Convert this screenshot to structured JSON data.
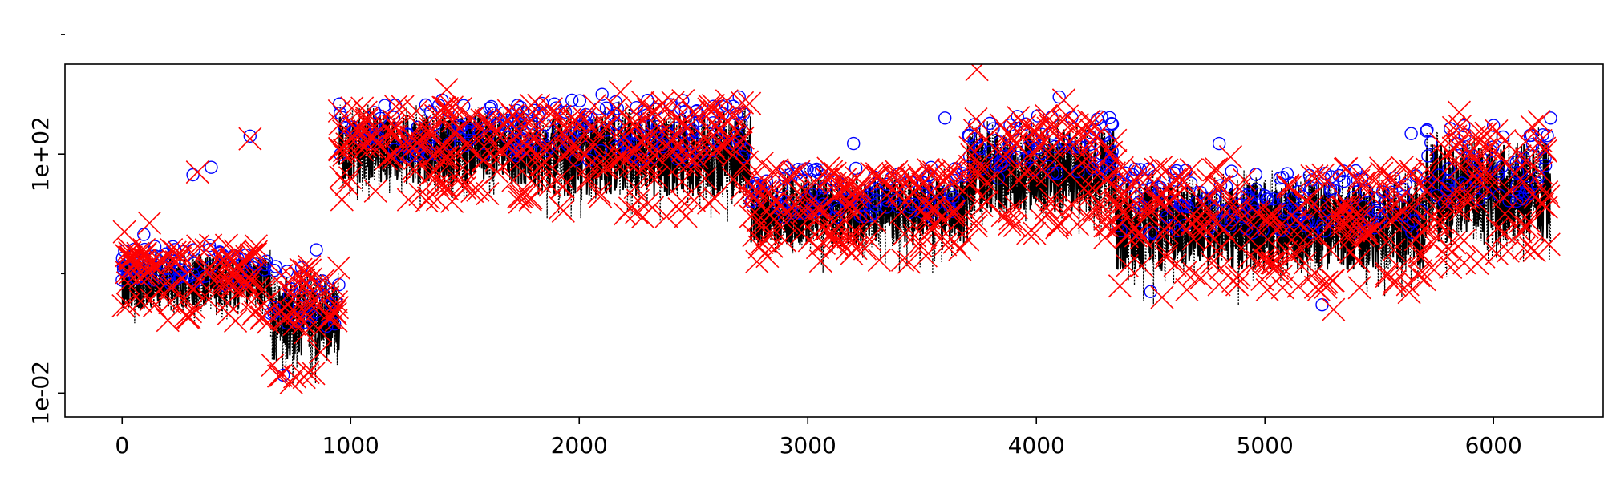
{
  "chart_data": {
    "type": "line",
    "title": "",
    "xlabel": "",
    "ylabel": "",
    "xlim": [
      -250,
      6480
    ],
    "ylim": [
      0.004,
      3200
    ],
    "y_scale": "log",
    "grid": false,
    "legend": "none",
    "x_ticks": [
      {
        "value": 0,
        "label": "0"
      },
      {
        "value": 1000,
        "label": "1000"
      },
      {
        "value": 2000,
        "label": "2000"
      },
      {
        "value": 3000,
        "label": "3000"
      },
      {
        "value": 4000,
        "label": "4000"
      },
      {
        "value": 5000,
        "label": "5000"
      },
      {
        "value": 6000,
        "label": "6000"
      }
    ],
    "y_ticks_major": [
      {
        "value": 0.01,
        "label": "1e-02"
      },
      {
        "value": 100,
        "label": "1e+02"
      }
    ],
    "y_ticks_minor": [
      1,
      10000
    ],
    "colors": {
      "line": "#000000",
      "circle_markers": "#0000ff",
      "x_markers": "#ff0000"
    },
    "series": [
      {
        "style": "black dotted line",
        "segments": [
          {
            "x": [
              0,
              650
            ],
            "y_low": 0.09,
            "y_high": 3
          },
          {
            "x": [
              650,
              950
            ],
            "y_low": 0.007,
            "y_high": 1.4
          },
          {
            "x": [
              950,
              1800
            ],
            "y_low": 8,
            "y_high": 700
          },
          {
            "x": [
              1800,
              2750
            ],
            "y_low": 4,
            "y_high": 800
          },
          {
            "x": [
              2750,
              3700
            ],
            "y_low": 0.8,
            "y_high": 60
          },
          {
            "x": [
              3700,
              4350
            ],
            "y_low": 2,
            "y_high": 450
          },
          {
            "x": [
              4350,
              5700
            ],
            "y_low": 0.2,
            "y_high": 60
          },
          {
            "x": [
              5700,
              6250
            ],
            "y_low": 0.4,
            "y_high": 300
          }
        ]
      },
      {
        "style": "blue circle markers",
        "points": [
          [
            15,
            1.3
          ],
          [
            95,
            4.5
          ],
          [
            310,
            45
          ],
          [
            390,
            60
          ],
          [
            560,
            200
          ],
          [
            705,
            0.02
          ],
          [
            850,
            2.5
          ],
          [
            1100,
            150
          ],
          [
            1400,
            800
          ],
          [
            1640,
            300
          ],
          [
            2100,
            1000
          ],
          [
            2250,
            600
          ],
          [
            2700,
            900
          ],
          [
            2900,
            60
          ],
          [
            3200,
            150
          ],
          [
            3600,
            400
          ],
          [
            3900,
            250
          ],
          [
            4100,
            900
          ],
          [
            4500,
            0.5
          ],
          [
            4800,
            150
          ],
          [
            5000,
            20
          ],
          [
            5250,
            0.3
          ],
          [
            5640,
            220
          ],
          [
            6000,
            300
          ],
          [
            6250,
            400
          ]
        ]
      },
      {
        "style": "red x markers",
        "points": [
          [
            10,
            5
          ],
          [
            120,
            7
          ],
          [
            330,
            50
          ],
          [
            560,
            180
          ],
          [
            740,
            0.015
          ],
          [
            900,
            0.4
          ],
          [
            1200,
            200
          ],
          [
            1420,
            1200
          ],
          [
            1700,
            80
          ],
          [
            2180,
            1100
          ],
          [
            2300,
            15
          ],
          [
            2500,
            500
          ],
          [
            2800,
            70
          ],
          [
            3400,
            20
          ],
          [
            3740,
            2600
          ],
          [
            3950,
            300
          ],
          [
            4120,
            800
          ],
          [
            4300,
            4
          ],
          [
            4550,
            0.4
          ],
          [
            4850,
            90
          ],
          [
            5100,
            30
          ],
          [
            5300,
            0.25
          ],
          [
            5600,
            60
          ],
          [
            5850,
            500
          ],
          [
            6050,
            10
          ],
          [
            6200,
            350
          ]
        ]
      }
    ]
  }
}
